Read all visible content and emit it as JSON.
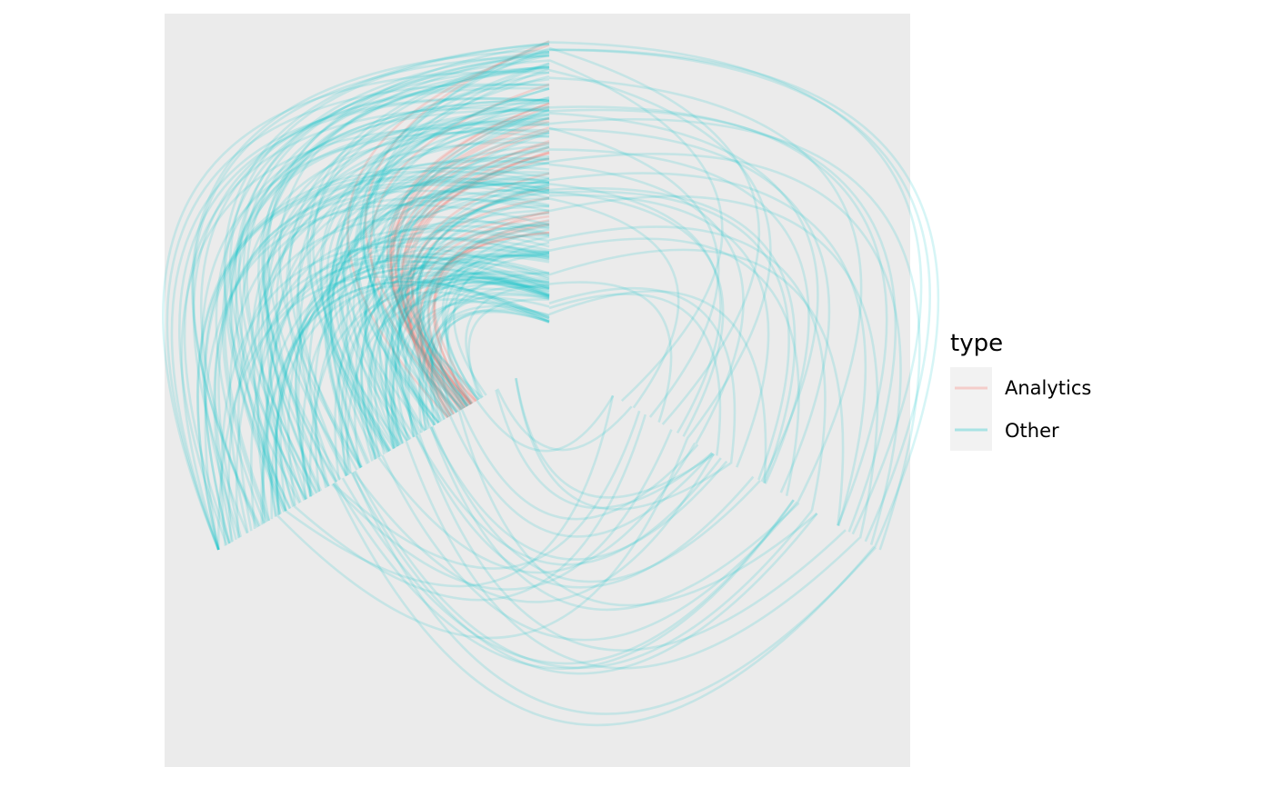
{
  "chart_data": {
    "type": "hive_plot",
    "title": "",
    "grid": false,
    "legend": {
      "title": "type",
      "placement": "right",
      "entries": [
        {
          "label": "Analytics",
          "color": "#F8766D"
        },
        {
          "label": "Other",
          "color": "#00BFC4"
        }
      ]
    },
    "colors": {
      "panel": "#EBEBEB",
      "legend_key": "#F2F2F2"
    },
    "axes": [
      {
        "direction_deg": 90
      },
      {
        "direction_deg": 210
      },
      {
        "direction_deg": 330
      }
    ],
    "series": [
      {
        "type": "Analytics",
        "edge_count": 28
      },
      {
        "type": "Other",
        "edge_count": 240
      }
    ]
  }
}
